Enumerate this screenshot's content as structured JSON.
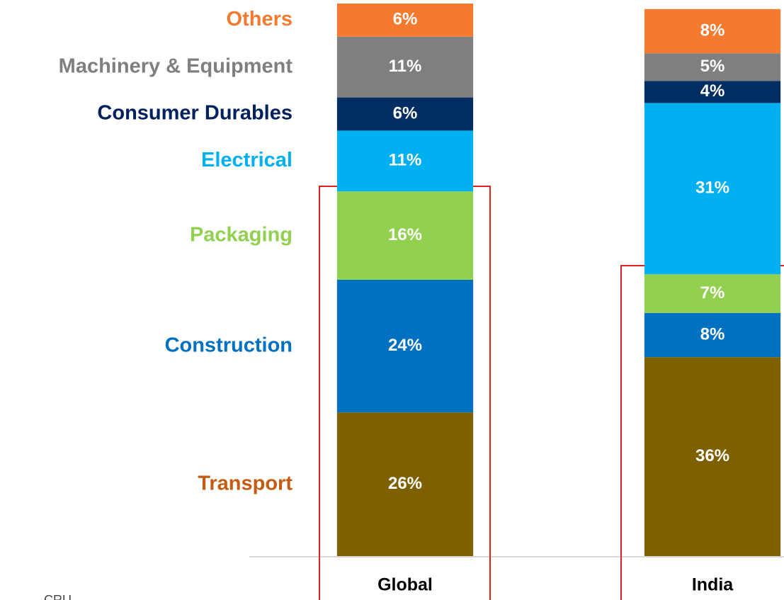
{
  "chart_data": {
    "type": "stacked_bar",
    "categories": [
      "Global",
      "India"
    ],
    "series": [
      {
        "name": "Transport",
        "color": "#7f6000",
        "label_color": "#c55a11",
        "values": [
          26,
          36
        ],
        "value_labels": [
          "26%",
          "36%"
        ]
      },
      {
        "name": "Construction",
        "color": "#0070c0",
        "label_color": "#0070c0",
        "values": [
          24,
          8
        ],
        "value_labels": [
          "24%",
          "8%"
        ]
      },
      {
        "name": "Packaging",
        "color": "#92d050",
        "label_color": "#92d050",
        "values": [
          16,
          7
        ],
        "value_labels": [
          "16%",
          "7%"
        ]
      },
      {
        "name": "Electrical",
        "color": "#00b0f0",
        "label_color": "#00b0f0",
        "values": [
          11,
          31
        ],
        "value_labels": [
          "11%",
          "31%"
        ]
      },
      {
        "name": "Consumer Durables",
        "color": "#002d62",
        "label_color": "#002060",
        "values": [
          6,
          4
        ],
        "value_labels": [
          "6%",
          "4%"
        ]
      },
      {
        "name": "Machinery & Equipment",
        "color": "#7f7f7f",
        "label_color": "#7f7f7f",
        "values": [
          11,
          5
        ],
        "value_labels": [
          "11%",
          "5%"
        ]
      },
      {
        "name": "Others",
        "color": "#f47a30",
        "label_color": "#f47a30",
        "values": [
          6,
          8
        ],
        "value_labels": [
          "6%",
          "8%"
        ]
      }
    ],
    "ylim": [
      0,
      100
    ],
    "source": "CRU"
  }
}
